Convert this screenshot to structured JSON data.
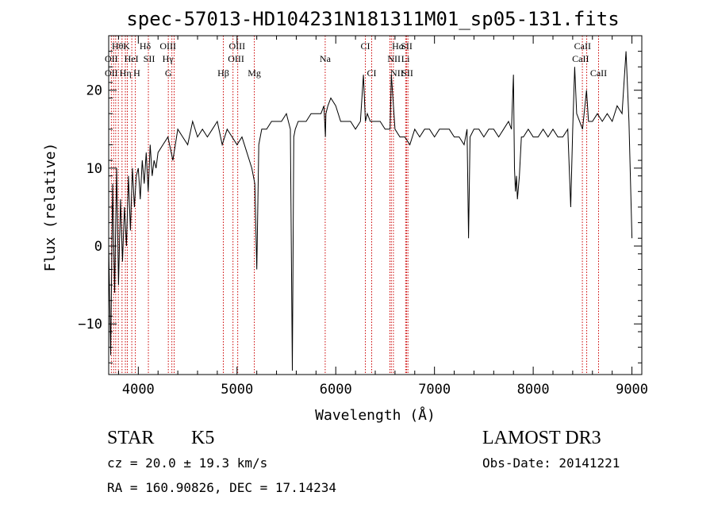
{
  "chart_data": {
    "type": "line",
    "title": "spec-57013-HD104231N181311M01_sp05-131.fits",
    "xlabel": "Wavelength (Å)",
    "ylabel": "Flux (relative)",
    "xlim": [
      3700,
      9100
    ],
    "ylim": [
      -16.5,
      27
    ],
    "xticks": [
      4000,
      5000,
      6000,
      7000,
      8000,
      9000
    ],
    "yticks": [
      -10,
      0,
      10,
      20
    ],
    "x_tick_labels": [
      "4000",
      "5000",
      "6000",
      "7000",
      "8000",
      "9000"
    ],
    "y_tick_labels": [
      "−10",
      "0",
      "10",
      "20"
    ],
    "grid": false,
    "series": [
      {
        "x": [
          3700,
          3720,
          3740,
          3760,
          3780,
          3800,
          3820,
          3840,
          3860,
          3880,
          3900,
          3920,
          3940,
          3960,
          3980,
          4000,
          4020,
          4040,
          4060,
          4080,
          4100,
          4120,
          4140,
          4160,
          4180,
          4200,
          4250,
          4300,
          4350,
          4400,
          4450,
          4500,
          4550,
          4600,
          4650,
          4700,
          4750,
          4800,
          4850,
          4900,
          4950,
          5000,
          5050,
          5100,
          5150,
          5180,
          5200,
          5220,
          5250,
          5300,
          5350,
          5400,
          5450,
          5500,
          5540,
          5560,
          5575,
          5590,
          5620,
          5650,
          5700,
          5750,
          5800,
          5850,
          5880,
          5895,
          5900,
          5920,
          5950,
          6000,
          6050,
          6100,
          6150,
          6200,
          6250,
          6280,
          6300,
          6320,
          6350,
          6400,
          6450,
          6500,
          6550,
          6563,
          6600,
          6650,
          6700,
          6750,
          6800,
          6850,
          6900,
          6950,
          7000,
          7050,
          7100,
          7150,
          7200,
          7250,
          7300,
          7330,
          7345,
          7360,
          7400,
          7450,
          7500,
          7550,
          7600,
          7650,
          7700,
          7750,
          7780,
          7800,
          7810,
          7820,
          7830,
          7840,
          7860,
          7880,
          7900,
          7950,
          8000,
          8050,
          8100,
          8150,
          8200,
          8250,
          8300,
          8350,
          8380,
          8400,
          8420,
          8440,
          8500,
          8540,
          8560,
          8600,
          8650,
          8700,
          8750,
          8800,
          8850,
          8900,
          8940,
          8970,
          9000
        ],
        "y": [
          0,
          -14,
          8,
          -6,
          10,
          -5,
          6,
          -2,
          5,
          0,
          9,
          2,
          10,
          5,
          9,
          10,
          6,
          11,
          8,
          12,
          7,
          13,
          9,
          11,
          10,
          12,
          13,
          14,
          11,
          15,
          14,
          13,
          16,
          14,
          15,
          14,
          15,
          16,
          13,
          15,
          14,
          13,
          14,
          12,
          10,
          8,
          -3,
          13,
          15,
          15,
          16,
          16,
          16,
          17,
          15,
          -16,
          14,
          15,
          16,
          16,
          16,
          17,
          17,
          17,
          18,
          14,
          17,
          18,
          19,
          18,
          16,
          16,
          16,
          15,
          16,
          22,
          16,
          17,
          16,
          16,
          16,
          15,
          15,
          22,
          15,
          14,
          14,
          13,
          15,
          14,
          15,
          15,
          14,
          15,
          15,
          15,
          14,
          14,
          13,
          15,
          1,
          14,
          15,
          15,
          14,
          15,
          15,
          14,
          15,
          16,
          15,
          22,
          10,
          7,
          9,
          6,
          9,
          14,
          14,
          15,
          14,
          14,
          15,
          14,
          15,
          14,
          14,
          15,
          5,
          15,
          23,
          17,
          15,
          20,
          16,
          16,
          17,
          16,
          17,
          16,
          18,
          17,
          25,
          16,
          1
        ]
      }
    ],
    "line_markers": {
      "labels_row1": [
        "Hθ",
        "K",
        "Hδ",
        "OIII",
        "OIII",
        "CI",
        "Hα",
        "SII",
        "CaII"
      ],
      "labels_row2": [
        "OII",
        "HeI",
        "SII",
        "Hγ",
        "OIII",
        "Na",
        "NII",
        "Li",
        "CaII"
      ],
      "labels_row3": [
        "OII",
        "Hη",
        "H",
        "G",
        "Hβ",
        "Mg",
        "CI",
        "NII",
        "SII",
        "CaII"
      ]
    },
    "info": {
      "class": "STAR",
      "subclass": "K5",
      "survey": "LAMOST DR3",
      "cz": "cz = 20.0 ± 19.3 km/s",
      "obs_date": "Obs-Date: 20141221",
      "coords": "RA = 160.90826, DEC =  17.14234"
    }
  }
}
